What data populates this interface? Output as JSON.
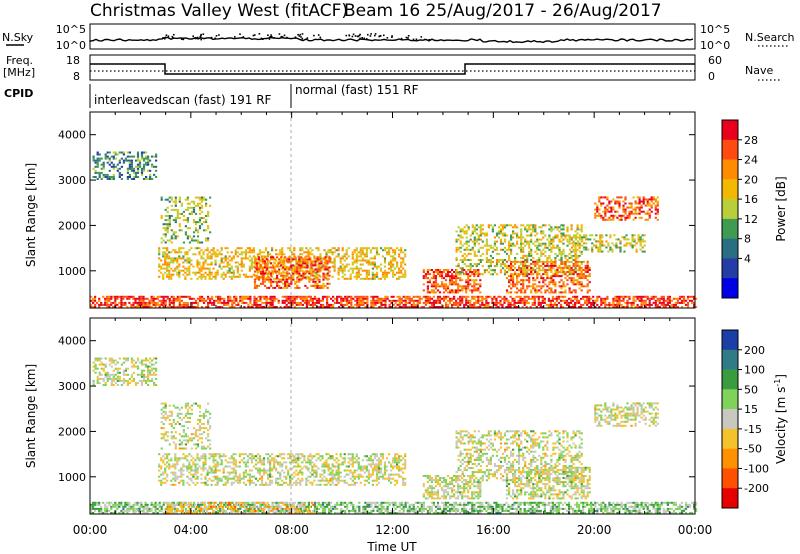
{
  "header": {
    "title": "Christmas Valley West (fitACF)",
    "subtitle": "Beam 16 25/Aug/2017 - 26/Aug/2017"
  },
  "panels": {
    "nsky": {
      "label": "N.Sky",
      "right_label": "N.Search",
      "left_ticks": [
        "10^5",
        "10^0"
      ],
      "right_ticks": [
        "10^5",
        "10^0"
      ]
    },
    "freq": {
      "label_line1": "Freq.",
      "label_line2": "[MHz]",
      "right_label": "Nave",
      "left_ticks": [
        "18",
        "8"
      ],
      "right_ticks": [
        "60",
        "0"
      ]
    },
    "cpid": {
      "label": "CPID",
      "segments": [
        "interleavedscan (fast) 191 RF",
        "normal (fast) 151 RF"
      ]
    }
  },
  "colorbars": {
    "power": {
      "label": "Power [dB]",
      "ticks": [
        "28",
        "24",
        "20",
        "16",
        "12",
        "8",
        "4"
      ],
      "colors": [
        "#e8001c",
        "#ff4a10",
        "#ff8c00",
        "#f5b800",
        "#b9cf3a",
        "#3f9a52",
        "#2a6e82",
        "#243ca6",
        "#0000e6"
      ]
    },
    "velocity": {
      "label_prefix": "Velocity [m s",
      "label_sup": "-1",
      "label_suffix": "]",
      "ticks": [
        "200",
        "100",
        "50",
        "15",
        "-15",
        "-50",
        "-100",
        "-200"
      ],
      "colors": [
        "#1a3fa6",
        "#2f7c86",
        "#3a9c3f",
        "#7fd35a",
        "#c8c8c0",
        "#f4c22a",
        "#ff9100",
        "#ff5000",
        "#e60000"
      ]
    }
  },
  "axes": {
    "x_label": "Time UT",
    "y_label": "Slant Range [km]"
  },
  "chart_data": [
    {
      "type": "heatmap",
      "name": "power",
      "x_ticks": [
        "00:00",
        "04:00",
        "08:00",
        "12:00",
        "16:00",
        "20:00",
        "00:00"
      ],
      "xlim_hours": [
        0,
        24
      ],
      "ylim": [
        180,
        4500
      ],
      "y_ticks": [
        1000,
        2000,
        3000,
        4000
      ],
      "clim": [
        0,
        30
      ],
      "regions": [
        {
          "t0": 0.1,
          "t1": 2.6,
          "r0": 3000,
          "r1": 3600,
          "v": 10,
          "d": 0.45
        },
        {
          "t0": 2.8,
          "t1": 4.8,
          "r0": 1600,
          "r1": 2600,
          "v": 14,
          "d": 0.3
        },
        {
          "t0": 2.7,
          "t1": 12.5,
          "r0": 800,
          "r1": 1500,
          "v": 18,
          "d": 0.45
        },
        {
          "t0": 6.5,
          "t1": 9.5,
          "r0": 600,
          "r1": 1300,
          "v": 24,
          "d": 0.55
        },
        {
          "t0": 0.0,
          "t1": 24.0,
          "r0": 180,
          "r1": 420,
          "v": 26,
          "d": 0.65
        },
        {
          "t0": 13.2,
          "t1": 15.5,
          "r0": 500,
          "r1": 1000,
          "v": 25,
          "d": 0.55
        },
        {
          "t0": 14.5,
          "t1": 19.5,
          "r0": 900,
          "r1": 2000,
          "v": 16,
          "d": 0.4
        },
        {
          "t0": 16.5,
          "t1": 19.8,
          "r0": 500,
          "r1": 1200,
          "v": 24,
          "d": 0.5
        },
        {
          "t0": 19.0,
          "t1": 22.0,
          "r0": 1400,
          "r1": 1800,
          "v": 16,
          "d": 0.4
        },
        {
          "t0": 20.0,
          "t1": 22.5,
          "r0": 2100,
          "r1": 2600,
          "v": 24,
          "d": 0.5
        }
      ]
    },
    {
      "type": "heatmap",
      "name": "velocity",
      "x_ticks": [
        "00:00",
        "04:00",
        "08:00",
        "12:00",
        "16:00",
        "20:00",
        "00:00"
      ],
      "xlim_hours": [
        0,
        24
      ],
      "ylim": [
        180,
        4500
      ],
      "y_ticks": [
        1000,
        2000,
        3000,
        4000
      ],
      "clim": [
        -250,
        250
      ],
      "regions": [
        {
          "t0": 0.1,
          "t1": 2.6,
          "r0": 3000,
          "r1": 3600,
          "v": 0,
          "d": 0.45
        },
        {
          "t0": 2.8,
          "t1": 4.8,
          "r0": 1600,
          "r1": 2600,
          "v": 0,
          "d": 0.3
        },
        {
          "t0": 2.7,
          "t1": 12.5,
          "r0": 800,
          "r1": 1500,
          "v": 0,
          "d": 0.45
        },
        {
          "t0": 0.0,
          "t1": 24.0,
          "r0": 180,
          "r1": 420,
          "v": 60,
          "d": 0.65
        },
        {
          "t0": 3.0,
          "t1": 9.0,
          "r0": 180,
          "r1": 420,
          "v": -60,
          "d": 0.4
        },
        {
          "t0": 13.2,
          "t1": 15.5,
          "r0": 500,
          "r1": 1000,
          "v": 0,
          "d": 0.55
        },
        {
          "t0": 14.5,
          "t1": 19.5,
          "r0": 900,
          "r1": 2000,
          "v": 0,
          "d": 0.4
        },
        {
          "t0": 16.5,
          "t1": 19.8,
          "r0": 500,
          "r1": 1200,
          "v": 0,
          "d": 0.5
        },
        {
          "t0": 20.0,
          "t1": 22.5,
          "r0": 2100,
          "r1": 2600,
          "v": 0,
          "d": 0.5
        }
      ]
    }
  ]
}
